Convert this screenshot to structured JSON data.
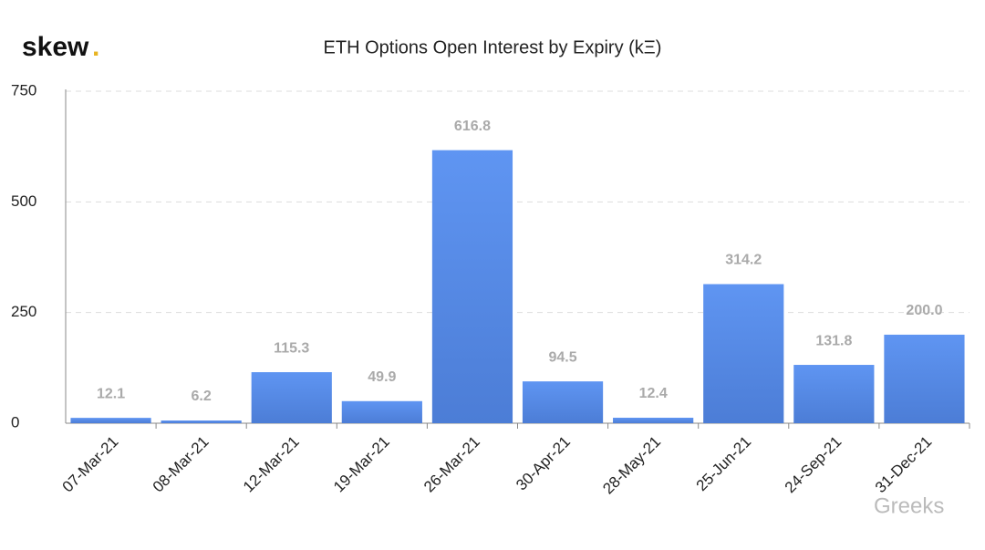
{
  "chart_data": {
    "type": "bar",
    "title": "ETH Options Open Interest by Expiry (kΞ)",
    "logo": "skew",
    "logo_dot": ".",
    "watermark": "Greeks",
    "categories": [
      "07-Mar-21",
      "08-Mar-21",
      "12-Mar-21",
      "19-Mar-21",
      "26-Mar-21",
      "30-Apr-21",
      "28-May-21",
      "25-Jun-21",
      "24-Sep-21",
      "31-Dec-21"
    ],
    "values": [
      12.1,
      6.2,
      115.3,
      49.9,
      616.8,
      94.5,
      12.4,
      314.2,
      131.8,
      200.0
    ],
    "value_labels": [
      "12.1",
      "6.2",
      "115.3",
      "49.9",
      "616.8",
      "94.5",
      "12.4",
      "314.2",
      "131.8",
      "200.0"
    ],
    "color": "#5a8de8",
    "ylim": [
      0,
      750
    ],
    "yticks": [
      0,
      250,
      500,
      750
    ],
    "grid": true
  }
}
